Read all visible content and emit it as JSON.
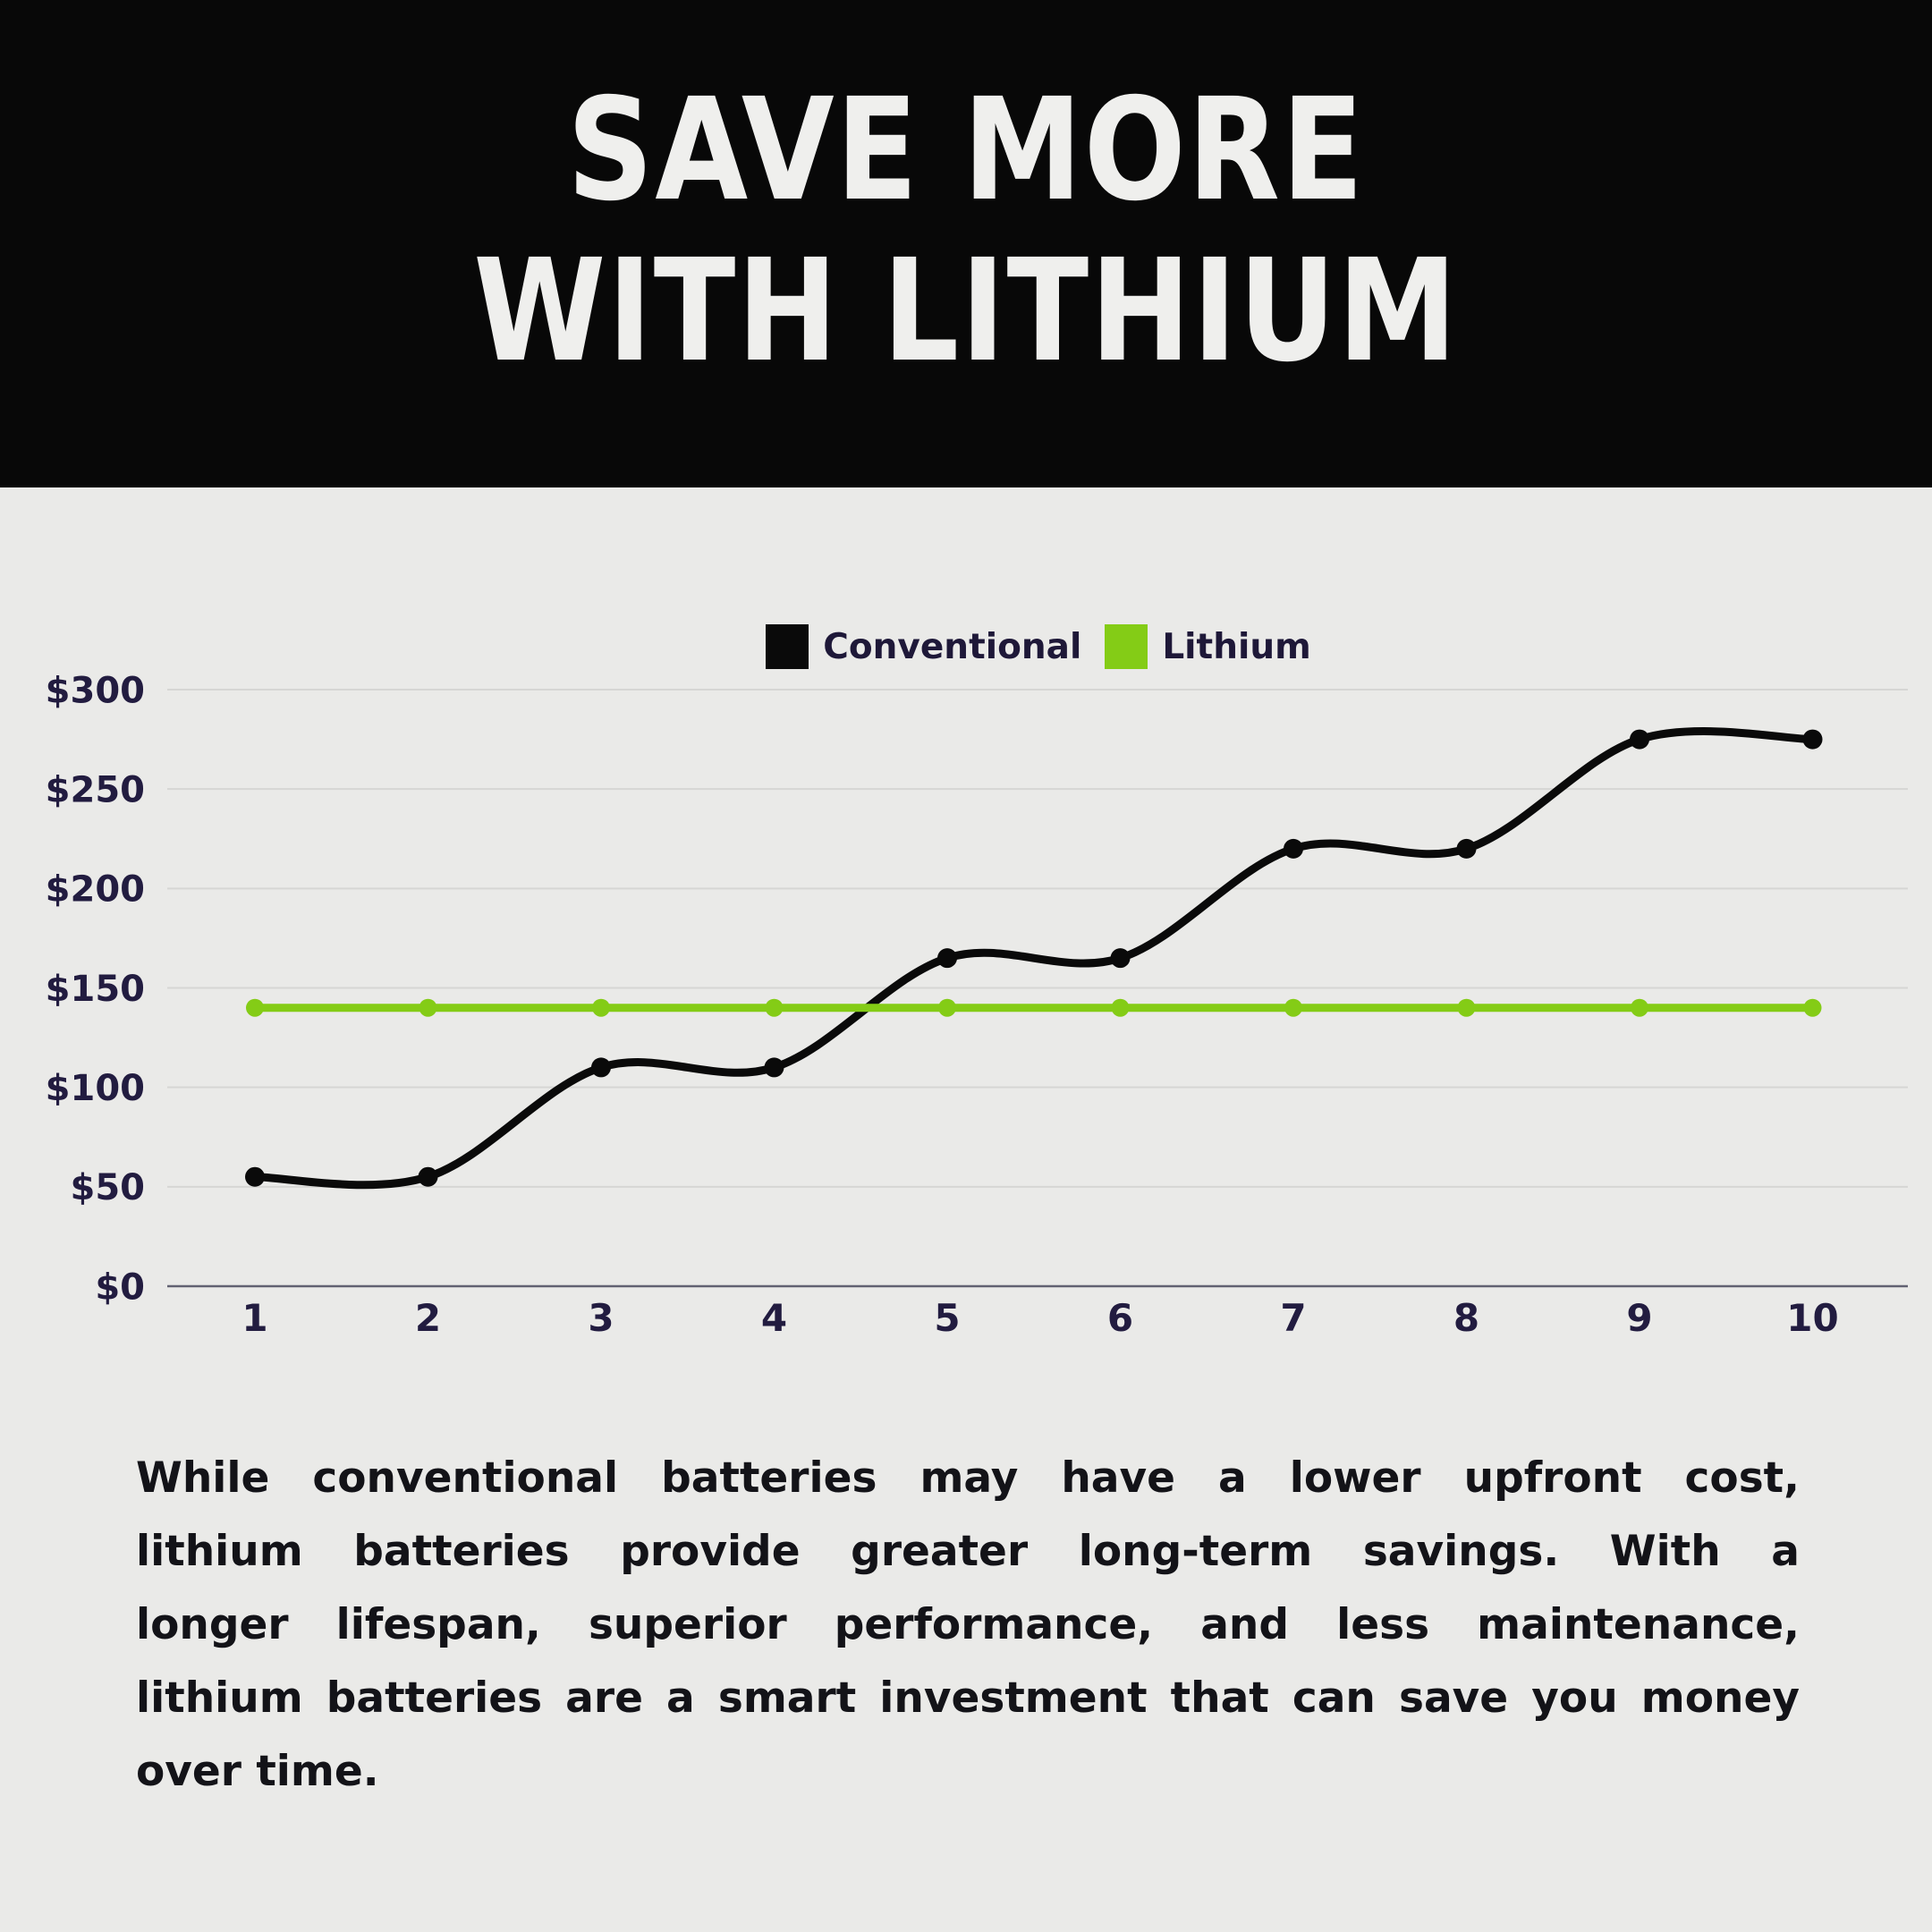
{
  "header": {
    "title_line1": "SAVE MORE",
    "title_line2": "WITH LITHIUM"
  },
  "chart_data": {
    "type": "line",
    "x": [
      1,
      2,
      3,
      4,
      5,
      6,
      7,
      8,
      9,
      10
    ],
    "series": [
      {
        "name": "Conventional",
        "color": "#0a0a0a",
        "values": [
          55,
          55,
          110,
          110,
          165,
          165,
          220,
          220,
          275,
          275
        ]
      },
      {
        "name": "Lithium",
        "color": "#84cc16",
        "values": [
          140,
          140,
          140,
          140,
          140,
          140,
          140,
          140,
          140,
          140
        ]
      }
    ],
    "ylim": [
      0,
      300
    ],
    "ytick_values": [
      0,
      50,
      100,
      150,
      200,
      250,
      300
    ],
    "ytick_labels": [
      "$0",
      "$50",
      "$100",
      "$150",
      "$200",
      "$250",
      "$300"
    ],
    "legend_position": "top-center",
    "grid": true,
    "colors": {
      "grid": "#d6d6d4",
      "axis": "#626272",
      "tick_text": "#221c40"
    }
  },
  "body": {
    "lines": [
      "While conventional batteries may have a lower upfront cost,",
      "lithium batteries provide greater long-term savings. With a",
      "longer lifespan, superior performance, and less maintenance,",
      "lithium batteries are a smart investment that can save you money",
      "over time."
    ]
  }
}
